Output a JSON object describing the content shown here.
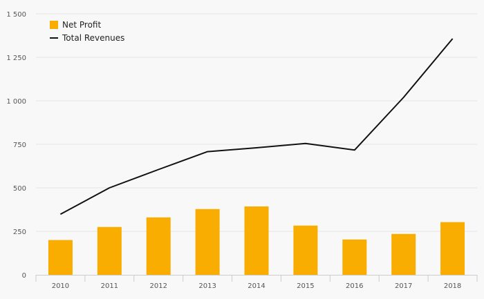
{
  "chart_data": {
    "type": "bar",
    "categories": [
      "2010",
      "2011",
      "2012",
      "2013",
      "2014",
      "2015",
      "2016",
      "2017",
      "2018"
    ],
    "series": [
      {
        "name": "Net Profit",
        "kind": "bar",
        "values": [
          200,
          275,
          330,
          378,
          393,
          283,
          203,
          235,
          303
        ]
      },
      {
        "name": "Total Revenues",
        "kind": "line",
        "values": [
          348,
          500,
          605,
          708,
          730,
          755,
          717,
          1020,
          1357
        ]
      }
    ],
    "y_ticks": [
      "0",
      "250",
      "500",
      "750",
      "1 000",
      "1 250",
      "1 500"
    ],
    "y_tick_values": [
      0,
      250,
      500,
      750,
      1000,
      1250,
      1500
    ],
    "ylim": [
      0,
      1500
    ],
    "grid": true,
    "legend_position": "top-left",
    "colors": {
      "bar": "#f9ad00",
      "line": "#111111",
      "grid": "#e4e4e4",
      "axis": "#cccccc",
      "background": "#f8f8f8"
    }
  }
}
